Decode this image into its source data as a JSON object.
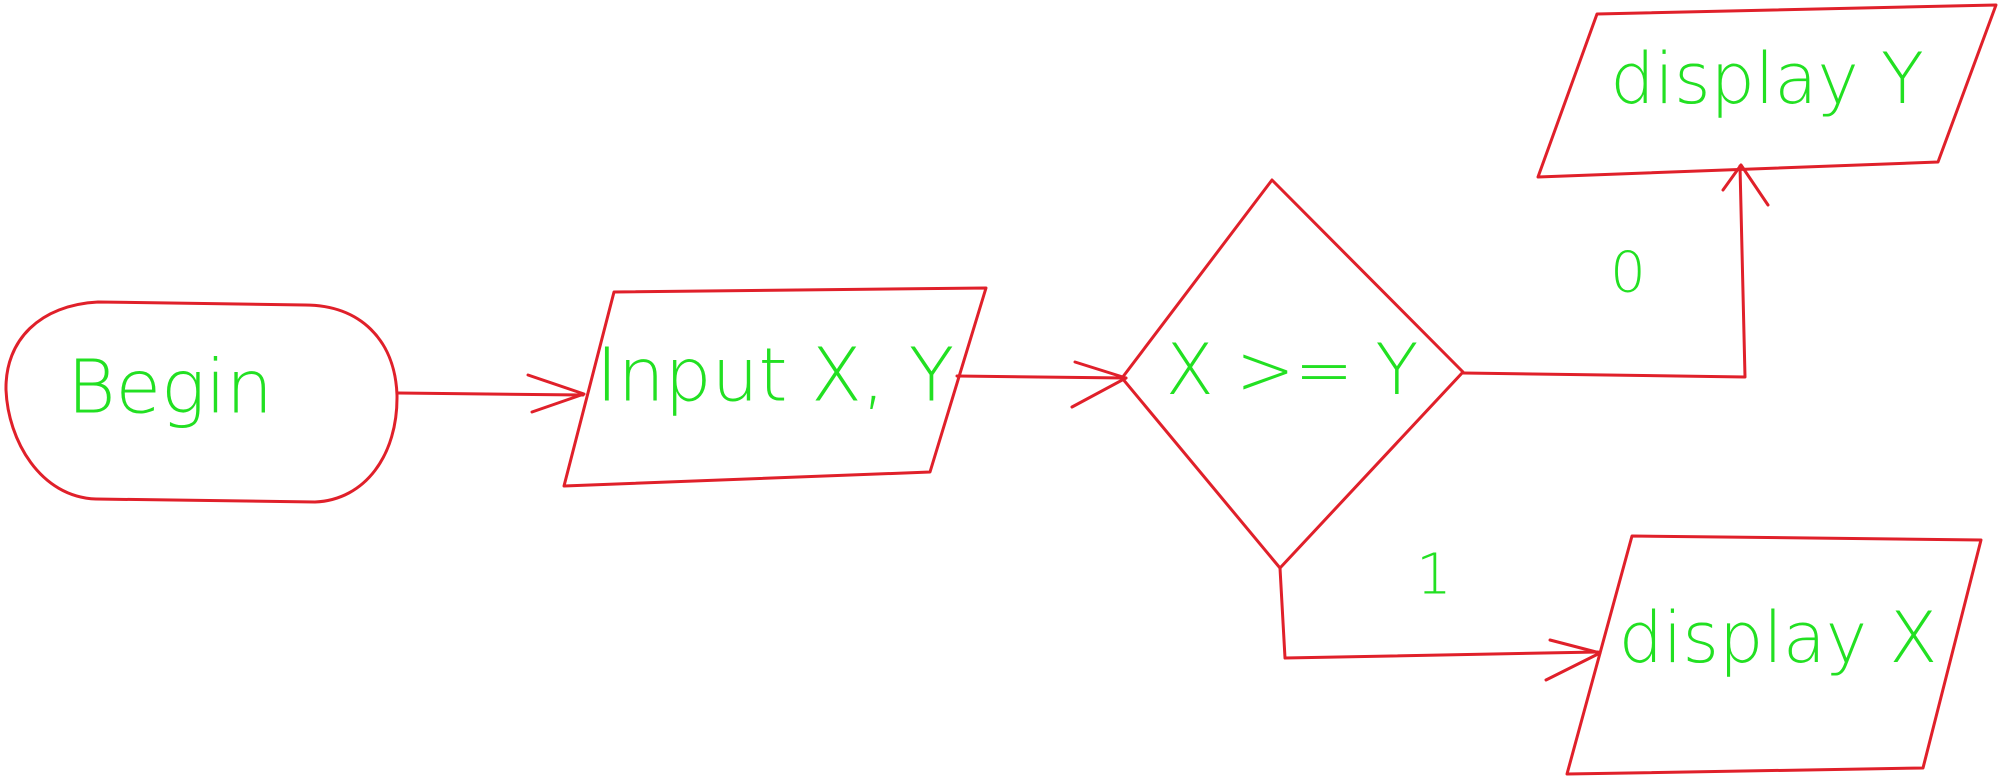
{
  "colors": {
    "outline": "#e0202a",
    "text": "#22e022",
    "background": "#ffffff"
  },
  "nodes": {
    "begin": {
      "label": "Begin",
      "shape": "terminator"
    },
    "input": {
      "label": "Input X, Y",
      "shape": "parallelogram"
    },
    "decision": {
      "label": "X >= Y",
      "shape": "diamond"
    },
    "display_y": {
      "label": "display Y",
      "shape": "parallelogram"
    },
    "display_x": {
      "label": "display X",
      "shape": "parallelogram"
    }
  },
  "edges": {
    "begin_to_input": {
      "from": "begin",
      "to": "input"
    },
    "input_to_decision": {
      "from": "input",
      "to": "decision"
    },
    "decision_to_display_y": {
      "from": "decision",
      "to": "display_y",
      "label": "0"
    },
    "decision_to_display_x": {
      "from": "decision",
      "to": "display_x",
      "label": "1"
    }
  }
}
